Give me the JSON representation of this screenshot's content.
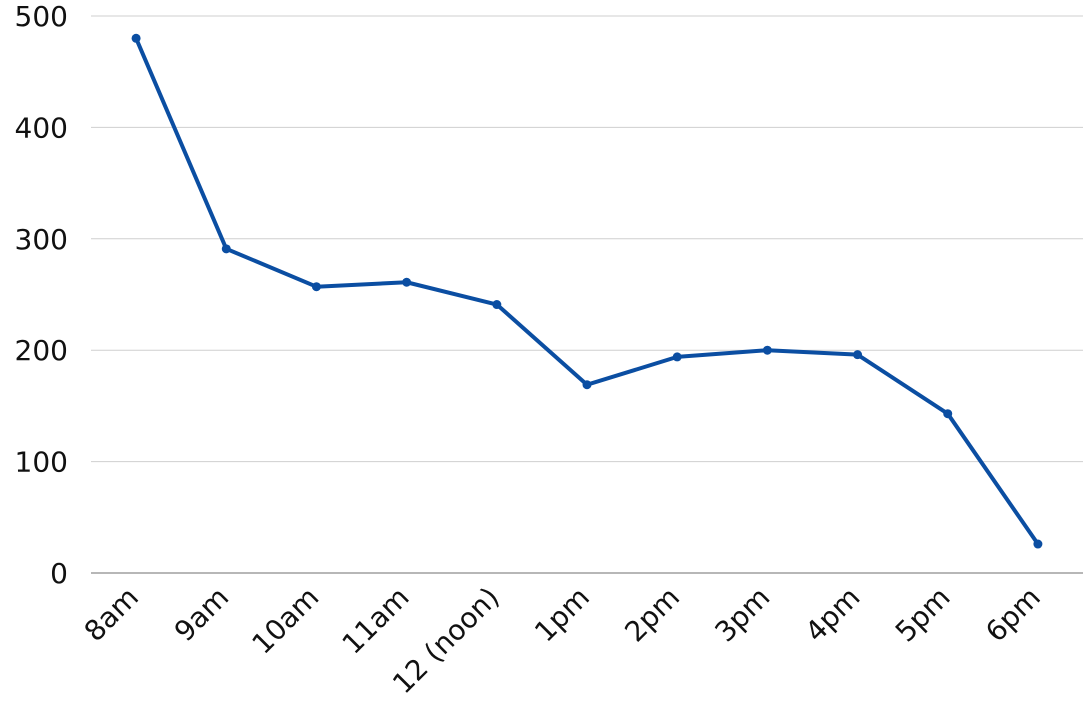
{
  "chart_data": {
    "type": "line",
    "title": "",
    "xlabel": "",
    "ylabel": "",
    "categories": [
      "8am",
      "9am",
      "10am",
      "11am",
      "12 (noon)",
      "1pm",
      "2pm",
      "3pm",
      "4pm",
      "5pm",
      "6pm"
    ],
    "series": [
      {
        "values": [
          480,
          291,
          257,
          261,
          241,
          169,
          194,
          200,
          196,
          143,
          26
        ],
        "color": "#0b4ea2"
      }
    ],
    "ylim": [
      0,
      500
    ],
    "yticks": [
      0,
      100,
      200,
      300,
      400,
      500
    ],
    "grid": true,
    "legend": "none",
    "markers": true
  }
}
